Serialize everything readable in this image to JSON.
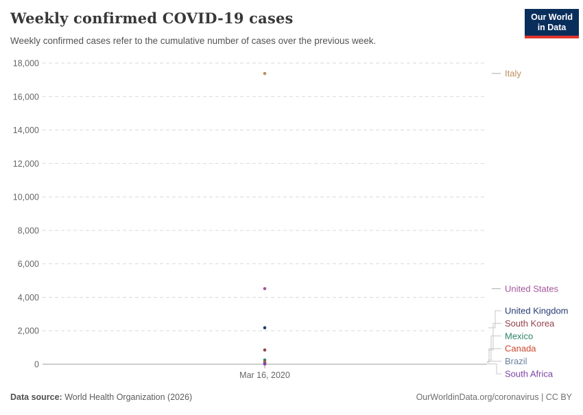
{
  "header": {
    "title": "Weekly confirmed COVID-19 cases",
    "subtitle": "Weekly confirmed cases refer to the cumulative number of cases over the previous week."
  },
  "logo": {
    "line1": "Our World",
    "line2": "in Data",
    "bg_color": "#0A2E5C",
    "accent_color": "#E0352B"
  },
  "chart_data": {
    "type": "scatter",
    "title": "Weekly confirmed COVID-19 cases",
    "xlabel": "",
    "ylabel": "",
    "x": [
      "Mar 16, 2020"
    ],
    "x_tick_label": "Mar 16, 2020",
    "ylim": [
      0,
      18000
    ],
    "yticks": [
      0,
      2000,
      4000,
      6000,
      8000,
      10000,
      12000,
      14000,
      16000,
      18000
    ],
    "grid": true,
    "gridline_style": "dashed",
    "legend_position": "right",
    "series": [
      {
        "name": "Italy",
        "value": 17380,
        "color": "#BC8E5A"
      },
      {
        "name": "United States",
        "value": 4520,
        "color": "#A2559C"
      },
      {
        "name": "United Kingdom",
        "value": 2180,
        "color": "#243A70"
      },
      {
        "name": "South Korea",
        "value": 850,
        "color": "#94414C"
      },
      {
        "name": "Mexico",
        "value": 250,
        "color": "#2C8465"
      },
      {
        "name": "Canada",
        "value": 120,
        "color": "#CB472D"
      },
      {
        "name": "Brazil",
        "value": 40,
        "color": "#67809C"
      },
      {
        "name": "South Africa",
        "value": 15,
        "color": "#7D43A6"
      }
    ]
  },
  "footer": {
    "source_label": "Data source:",
    "source_text": " World Health Organization (2026)",
    "url_text": "OurWorldinData.org/coronavirus",
    "separator": " | ",
    "license_text": "CC BY"
  }
}
